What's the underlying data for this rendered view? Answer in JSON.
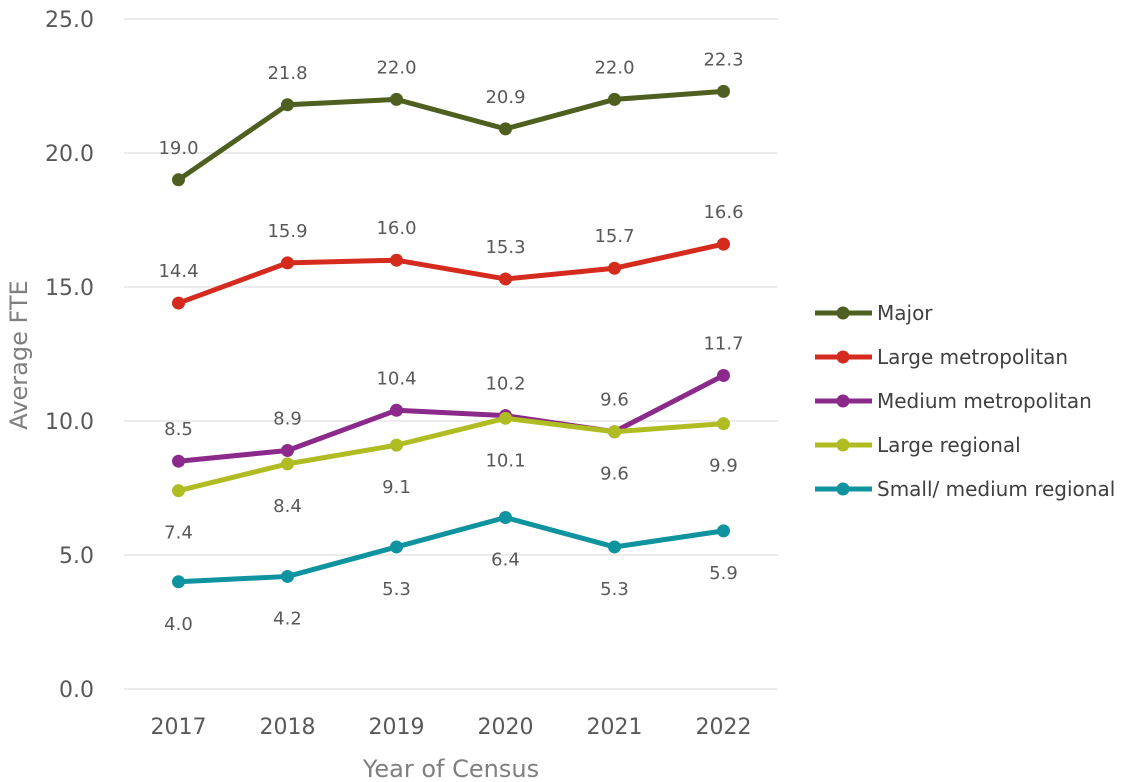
{
  "chart_data": {
    "type": "line",
    "title": "",
    "xlabel": "Year of Census",
    "ylabel": "Average FTE",
    "ylim": [
      0,
      25
    ],
    "yticks": [
      "0.0",
      "5.0",
      "10.0",
      "15.0",
      "20.0",
      "25.0"
    ],
    "grid": true,
    "legend_position": "right",
    "x": [
      "2017",
      "2018",
      "2019",
      "2020",
      "2021",
      "2022"
    ],
    "series": [
      {
        "name": "Major",
        "color": "#4f5f1f",
        "values": [
          19.0,
          21.8,
          22.0,
          20.9,
          22.0,
          22.3
        ],
        "labels": [
          "19.0",
          "21.8",
          "22.0",
          "20.9",
          "22.0",
          "22.3"
        ]
      },
      {
        "name": "Large metropolitan",
        "color": "#d52b1e",
        "values": [
          14.4,
          15.9,
          16.0,
          15.3,
          15.7,
          16.6
        ],
        "labels": [
          "14.4",
          "15.9",
          "16.0",
          "15.3",
          "15.7",
          "16.6"
        ]
      },
      {
        "name": "Medium metropolitan",
        "color": "#8b2a8b",
        "values": [
          8.5,
          8.9,
          10.4,
          10.2,
          9.6,
          11.7
        ],
        "labels": [
          "8.5",
          "8.9",
          "10.4",
          "10.2",
          "9.6",
          "11.7"
        ]
      },
      {
        "name": "Large regional",
        "color": "#afbc22",
        "values": [
          7.4,
          8.4,
          9.1,
          10.1,
          9.6,
          9.9
        ],
        "labels": [
          "7.4",
          "8.4",
          "9.1",
          "10.1",
          "9.6",
          "9.9"
        ]
      },
      {
        "name": "Small/ medium regional",
        "color": "#0e939f",
        "values": [
          4.0,
          4.2,
          5.3,
          6.4,
          5.3,
          5.9
        ],
        "labels": [
          "4.0",
          "4.2",
          "5.3",
          "6.4",
          "5.3",
          "5.9"
        ]
      }
    ]
  }
}
